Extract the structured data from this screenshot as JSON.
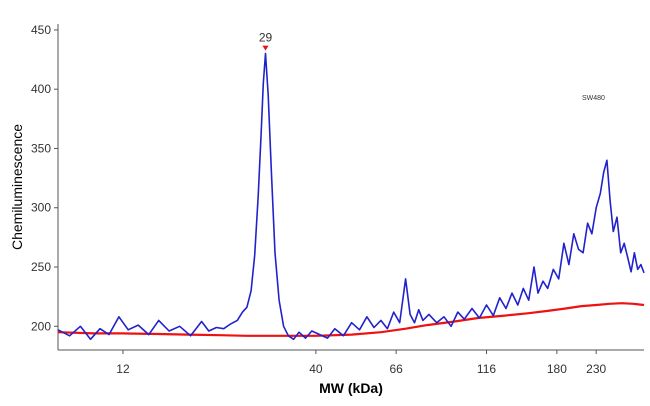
{
  "chart_data": {
    "type": "line",
    "title": "",
    "xlabel": "MW (kDa)",
    "ylabel": "Chemiluminescence",
    "ylim": [
      180,
      455
    ],
    "yticks": [
      200,
      250,
      300,
      350,
      400,
      450
    ],
    "xscale": "log",
    "xlim": [
      8,
      310
    ],
    "xticks": [
      12,
      40,
      66,
      116,
      180,
      230
    ],
    "sample_label": "SW480",
    "peak_label": "29",
    "grid": false,
    "colors": {
      "signal": "#2222cc",
      "baseline": "#ee1111",
      "axis": "#555555"
    },
    "series": [
      {
        "key": "signal",
        "x": [
          8.0,
          8.6,
          9.2,
          9.8,
          10.4,
          11.0,
          11.7,
          12.4,
          13.2,
          14.1,
          15.0,
          16.0,
          17.1,
          18.3,
          19.6,
          20.5,
          21.5,
          22.5,
          23.5,
          24.5,
          25.3,
          26.0,
          26.7,
          27.3,
          27.9,
          28.4,
          28.8,
          29.2,
          29.7,
          30.3,
          31.0,
          31.8,
          32.7,
          33.7,
          34.8,
          36.0,
          37.5,
          39.0,
          41.0,
          43.0,
          45.0,
          47.5,
          50.0,
          52.5,
          55.0,
          57.5,
          60.0,
          62.5,
          65.0,
          67.5,
          70.0,
          72.0,
          74.0,
          76.0,
          78.0,
          81.0,
          85.0,
          89.0,
          93.0,
          97.0,
          101.0,
          106.0,
          111.0,
          116.0,
          121.0,
          126.0,
          131.0,
          136.0,
          141.0,
          146.0,
          151.0,
          156.0,
          160.0,
          165.0,
          170.0,
          176.0,
          182.0,
          188.0,
          194.0,
          200.0,
          206.0,
          212.0,
          218.0,
          224.0,
          230.0,
          236.0,
          241.0,
          246.0,
          251.0,
          256.0,
          262.0,
          268.0,
          274.0,
          280.0,
          286.0,
          292.0,
          298.0,
          304.0,
          310.0
        ],
        "y": [
          197,
          192,
          200,
          189,
          198,
          193,
          208,
          197,
          201,
          193,
          205,
          196,
          200,
          192,
          204,
          196,
          199,
          198,
          202,
          205,
          212,
          216,
          230,
          260,
          310,
          360,
          405,
          430,
          395,
          330,
          262,
          222,
          200,
          192,
          189,
          195,
          190,
          196,
          193,
          190,
          198,
          192,
          203,
          197,
          208,
          199,
          205,
          198,
          212,
          203,
          240,
          210,
          203,
          214,
          205,
          210,
          203,
          208,
          200,
          212,
          206,
          215,
          207,
          218,
          209,
          224,
          215,
          228,
          218,
          232,
          222,
          250,
          228,
          238,
          232,
          248,
          240,
          270,
          252,
          278,
          265,
          262,
          287,
          278,
          300,
          312,
          330,
          340,
          305,
          280,
          292,
          262,
          270,
          258,
          246,
          262,
          248,
          252,
          245
        ]
      },
      {
        "key": "baseline",
        "x": [
          8.0,
          10.0,
          12.0,
          15.0,
          18.0,
          22.0,
          26.0,
          30.0,
          35.0,
          40.0,
          50.0,
          60.0,
          70.0,
          80.0,
          95.0,
          110.0,
          130.0,
          150.0,
          170.0,
          190.0,
          210.0,
          230.0,
          250.0,
          270.0,
          290.0,
          310.0
        ],
        "y": [
          195,
          194,
          194,
          193.5,
          193,
          192.5,
          192,
          192,
          192,
          192,
          193,
          195,
          198,
          201,
          204,
          207,
          209,
          211,
          213,
          215,
          217,
          218,
          219,
          219.5,
          219,
          218
        ]
      }
    ]
  }
}
